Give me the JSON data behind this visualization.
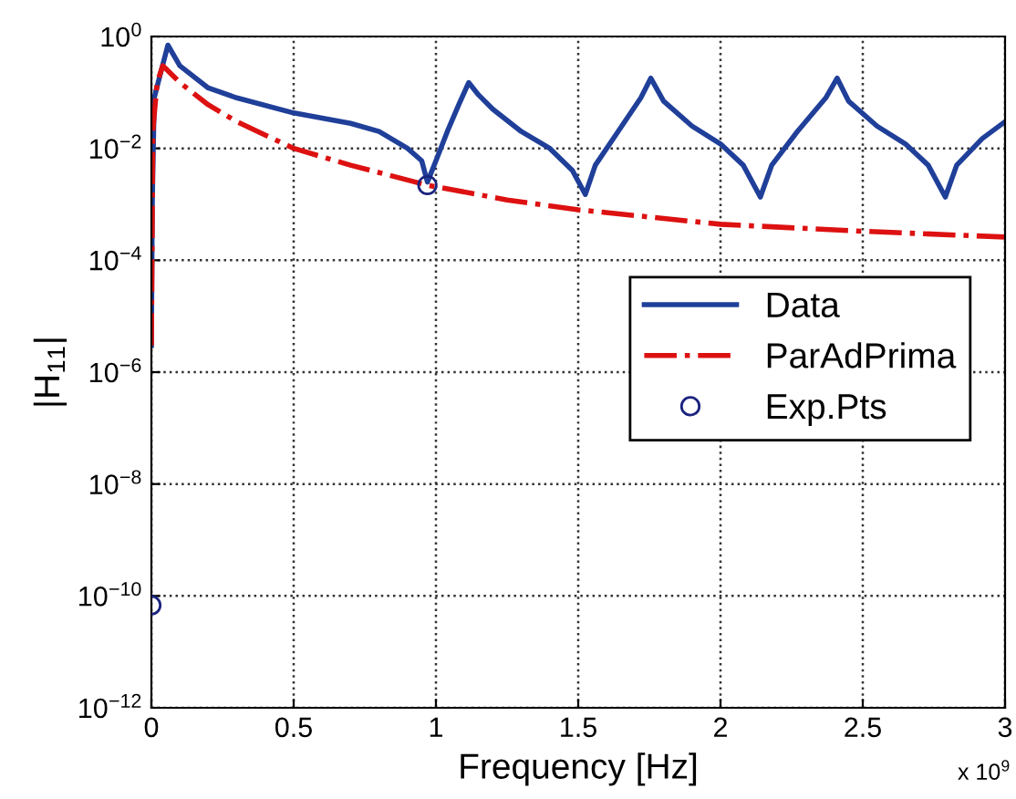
{
  "chart_data": {
    "type": "line",
    "xlabel": "Frequency [Hz]",
    "ylabel": "|H$_{11}$|",
    "log": "y",
    "grid": true,
    "legend": "right",
    "xlim": [
      0,
      3
    ],
    "xticks": [
      0,
      0.5,
      1,
      1.5,
      2,
      2.5,
      3
    ],
    "ylim": [
      1e-12,
      1
    ],
    "yticks": [
      {
        "value": 1e-12,
        "label": "10$^{−12}$"
      },
      {
        "value": 1e-10,
        "label": "10$^{−10}$"
      },
      {
        "value": 1e-08,
        "label": "10$^{−8}$"
      },
      {
        "value": 1e-06,
        "label": "10$^{−6}$"
      },
      {
        "value": 0.0001,
        "label": "10$^{−4}$"
      },
      {
        "value": 0.01,
        "label": "10$^{−2}$"
      },
      {
        "value": 1,
        "label": "10$^{0}$"
      }
    ],
    "annotations": [
      "x 10$^{9}$"
    ],
    "series": [
      {
        "name": "Data",
        "color": "#1f3f99",
        "line_style": "solid",
        "marker": "none",
        "x": [
          0,
          0.003,
          0.01,
          0.03,
          0.058,
          0.1,
          0.2,
          0.3,
          0.5,
          0.7,
          0.8,
          0.9,
          0.95,
          0.97,
          1.0,
          1.04,
          1.08,
          1.115,
          1.15,
          1.2,
          1.3,
          1.4,
          1.48,
          1.525,
          1.56,
          1.64,
          1.72,
          1.755,
          1.8,
          1.9,
          2.0,
          2.08,
          2.14,
          2.18,
          2.27,
          2.37,
          2.41,
          2.45,
          2.55,
          2.65,
          2.73,
          2.79,
          2.83,
          2.92,
          3.0
        ],
        "values": [
          3e-06,
          0.001,
          0.08,
          0.2,
          0.7,
          0.3,
          0.12,
          0.08,
          0.043,
          0.028,
          0.02,
          0.01,
          0.006,
          0.0025,
          0.006,
          0.02,
          0.06,
          0.15,
          0.09,
          0.05,
          0.02,
          0.01,
          0.004,
          0.0015,
          0.005,
          0.02,
          0.08,
          0.18,
          0.07,
          0.025,
          0.012,
          0.005,
          0.00135,
          0.005,
          0.02,
          0.08,
          0.18,
          0.07,
          0.025,
          0.012,
          0.005,
          0.00135,
          0.005,
          0.015,
          0.03
        ]
      },
      {
        "name": "ParAdPrima",
        "color": "#dd1111",
        "line_style": "dashdot",
        "marker": "none",
        "x": [
          0,
          0.005,
          0.02,
          0.04,
          0.1,
          0.2,
          0.3,
          0.5,
          0.7,
          0.97,
          1.25,
          1.5,
          2.0,
          2.5,
          3.0
        ],
        "values": [
          3e-06,
          0.02,
          0.15,
          0.3,
          0.15,
          0.06,
          0.03,
          0.01,
          0.005,
          0.0022,
          0.0012,
          0.0008,
          0.00044,
          0.00033,
          0.00026
        ]
      },
      {
        "name": "Exp.Pts",
        "type": "scatter",
        "color": "#1a237e",
        "marker": "circle",
        "x": [
          0,
          0.97
        ],
        "values": [
          6.8e-11,
          0.0022
        ]
      }
    ]
  }
}
